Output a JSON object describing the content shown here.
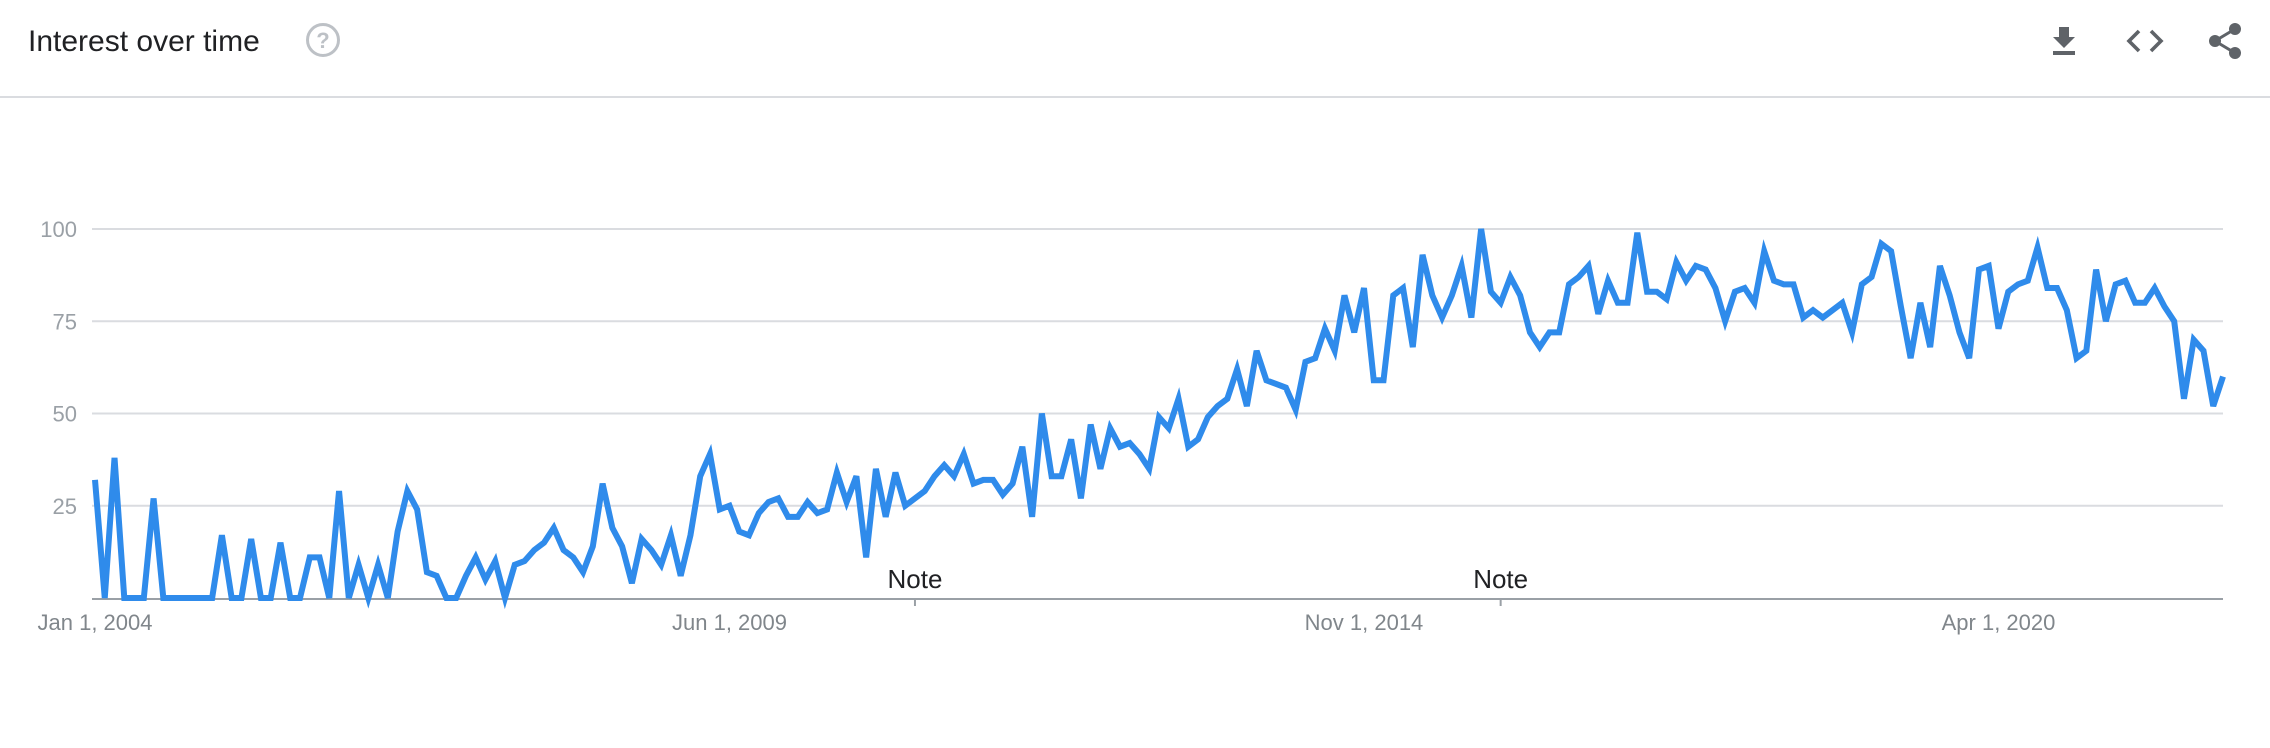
{
  "header": {
    "title": "Interest over time",
    "help_icon": "help-circle-icon",
    "tools": [
      "download-icon",
      "embed-code-icon",
      "share-icon"
    ]
  },
  "colors": {
    "line": "#2f8beb",
    "grid": "#dadce0",
    "axis": "#9aa0a6",
    "tick_text": "#9aa0a6"
  },
  "chart_data": {
    "type": "line",
    "title": "",
    "xlabel": "",
    "ylabel": "",
    "ylim": [
      0,
      100
    ],
    "yticks": [
      "25",
      "50",
      "75",
      "100"
    ],
    "xticks": [
      {
        "label": "Jan 1, 2004",
        "date": "2004-01-01"
      },
      {
        "label": "Jun 1, 2009",
        "date": "2009-06-01"
      },
      {
        "label": "Nov 1, 2014",
        "date": "2014-11-01"
      },
      {
        "label": "Apr 1, 2020",
        "date": "2020-04-01"
      }
    ],
    "notes": [
      {
        "label": "Note",
        "date": "2011-01-01"
      },
      {
        "label": "Note",
        "date": "2016-01-01"
      }
    ],
    "grid": true,
    "legend": "none",
    "series": [
      {
        "x_start": "2004-01",
        "x_frequency": "monthly",
        "values": [
          32,
          0,
          38,
          0,
          0,
          0,
          27,
          0,
          0,
          0,
          0,
          0,
          0,
          17,
          0,
          0,
          16,
          0,
          0,
          15,
          0,
          0,
          11,
          11,
          0,
          29,
          0,
          9,
          0,
          9,
          0,
          18,
          29,
          24,
          7,
          6,
          0,
          0,
          6,
          11,
          5,
          10,
          0,
          9,
          10,
          13,
          15,
          19,
          13,
          11,
          7,
          14,
          31,
          19,
          14,
          4,
          16,
          13,
          9,
          17,
          6,
          17,
          33,
          39,
          24,
          25,
          18,
          17,
          23,
          26,
          27,
          22,
          22,
          26,
          23,
          24,
          34,
          26,
          33,
          11,
          35,
          22,
          34,
          25,
          27,
          29,
          33,
          36,
          33,
          39,
          31,
          32,
          32,
          28,
          31,
          41,
          22,
          50,
          33,
          33,
          43,
          27,
          47,
          35,
          46,
          41,
          42,
          39,
          35,
          49,
          46,
          54,
          41,
          43,
          49,
          52,
          54,
          62,
          52,
          67,
          59,
          58,
          57,
          51,
          64,
          65,
          73,
          67,
          82,
          72,
          84,
          59,
          59,
          82,
          84,
          68,
          93,
          82,
          76,
          82,
          90,
          76,
          100,
          83,
          80,
          87,
          82,
          72,
          68,
          72,
          72,
          85,
          87,
          90,
          77,
          86,
          80,
          80,
          99,
          83,
          83,
          81,
          91,
          86,
          90,
          89,
          84,
          75,
          83,
          84,
          80,
          94,
          86,
          85,
          85,
          76,
          78,
          76,
          78,
          80,
          72,
          85,
          87,
          96,
          94,
          79,
          65,
          80,
          68,
          90,
          82,
          72,
          65,
          89,
          90,
          73,
          83,
          85,
          86,
          95,
          84,
          84,
          78,
          65,
          67,
          89,
          75,
          85,
          86,
          80,
          80,
          84,
          79,
          75,
          54,
          70,
          67,
          52,
          60
        ]
      }
    ]
  }
}
